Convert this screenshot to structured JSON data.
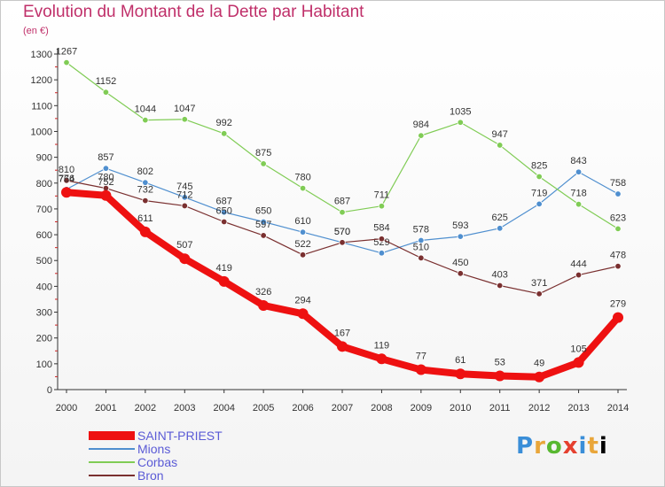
{
  "title": "Evolution du Montant de la Dette par Habitant",
  "unit": "(en €)",
  "logo": [
    "P",
    "r",
    "o",
    "x",
    "i",
    "t",
    "i"
  ],
  "chart_data": {
    "type": "line",
    "x": [
      "2000",
      "2001",
      "2002",
      "2003",
      "2004",
      "2005",
      "2006",
      "2007",
      "2008",
      "2009",
      "2010",
      "2011",
      "2012",
      "2013",
      "2014"
    ],
    "ylim": [
      0,
      1300
    ],
    "yticks": [
      0,
      100,
      200,
      300,
      400,
      500,
      600,
      700,
      800,
      900,
      1000,
      1100,
      1200,
      1300
    ],
    "grid": false,
    "legend_position": "bottom-left",
    "series": [
      {
        "name": "SAINT-PRIEST",
        "color": "#ee1111",
        "values": [
          764,
          752,
          611,
          507,
          419,
          326,
          294,
          167,
          119,
          77,
          61,
          53,
          49,
          105,
          279
        ]
      },
      {
        "name": "Mions",
        "color": "#4f8fcf",
        "values": [
          776,
          857,
          802,
          745,
          687,
          650,
          610,
          570,
          529,
          578,
          593,
          625,
          719,
          843,
          758
        ]
      },
      {
        "name": "Corbas",
        "color": "#80cc55",
        "values": [
          1267,
          1152,
          1044,
          1047,
          992,
          875,
          780,
          687,
          711,
          984,
          1035,
          947,
          825,
          718,
          623
        ]
      },
      {
        "name": "Bron",
        "color": "#7a3030",
        "values": [
          810,
          780,
          732,
          712,
          650,
          597,
          522,
          570,
          584,
          510,
          450,
          403,
          371,
          444,
          478
        ]
      }
    ]
  }
}
